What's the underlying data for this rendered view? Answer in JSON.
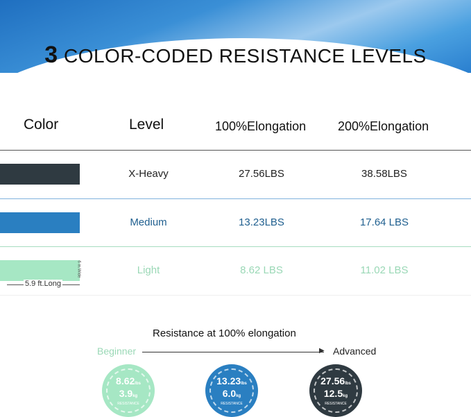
{
  "title": {
    "number": "3",
    "text": "COLOR-CODED RESISTANCE LEVELS"
  },
  "table": {
    "headers": [
      "Color",
      "Level",
      "100%Elongation",
      "200%Elongation"
    ],
    "rows": [
      {
        "level": "X-Heavy",
        "e100": "27.56LBS",
        "e200": "38.58LBS",
        "color": "#2f3a41",
        "text_color": "#222222"
      },
      {
        "level": "Medium",
        "e100": "13.23LBS",
        "e200": "17.64 LBS",
        "color": "#2a7fc1",
        "text_color": "#1f5f8f"
      },
      {
        "level": "Light",
        "e100": "8.62 LBS",
        "e200": "11.02 LBS",
        "color": "#a6e7c4",
        "text_color": "#9ad8b6"
      }
    ],
    "length_label": "5.9 ft.Long",
    "width_label": "6 in.Wide"
  },
  "scale": {
    "title": "Resistance at 100% elongation",
    "start": "Beginner",
    "end": "Advanced"
  },
  "circles": [
    {
      "lbs": "8.62",
      "lbs_unit": "lbs",
      "kg": "3.9",
      "kg_unit": "kg",
      "label": "RESISTANCE",
      "color": "#a6e7c4"
    },
    {
      "lbs": "13.23",
      "lbs_unit": "lbs",
      "kg": "6.0",
      "kg_unit": "kg",
      "label": "RESISTANCE",
      "color": "#2a7fc1"
    },
    {
      "lbs": "27.56",
      "lbs_unit": "lbs",
      "kg": "12.5",
      "kg_unit": "kg",
      "label": "RESISTANCE",
      "color": "#2f3a41"
    }
  ]
}
